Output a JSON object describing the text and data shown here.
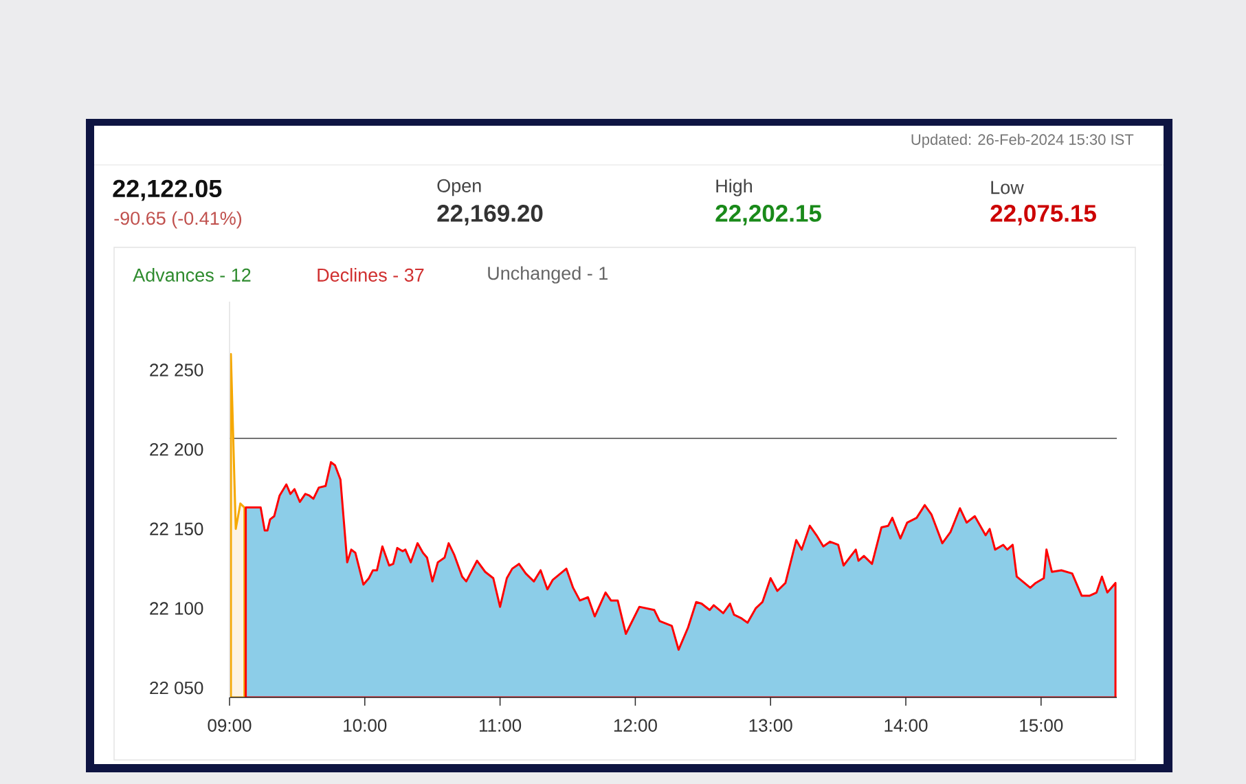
{
  "chart_data": {
    "type": "area",
    "title": "22,122.05",
    "subtitle": "-90.65 (-0.41%)",
    "annotations": [
      "Updated: 26-Feb-2024 15:30 IST",
      "Open",
      "22,169.20",
      "High",
      "22,202.15",
      "Low",
      "22,075.15",
      "Advances - 12",
      "Declines - 37",
      "Unchanged - 1"
    ],
    "xlim": [
      9,
      15.56
    ],
    "ylim": [
      22044,
      22293
    ],
    "xticks": [
      {
        "value": 9,
        "label": "09:00"
      },
      {
        "value": 10,
        "label": "10:00"
      },
      {
        "value": 11,
        "label": "11:00"
      },
      {
        "value": 12,
        "label": "12:00"
      },
      {
        "value": 13,
        "label": "13:00"
      },
      {
        "value": 14,
        "label": "14:00"
      },
      {
        "value": 15,
        "label": "15:00"
      }
    ],
    "yticks": [
      {
        "value": 22050,
        "label": "22 050"
      },
      {
        "value": 22100,
        "label": "22 100"
      },
      {
        "value": 22150,
        "label": "22 150"
      },
      {
        "value": 22200,
        "label": "22 200"
      },
      {
        "value": 22250,
        "label": "22 250"
      }
    ],
    "grid": false,
    "ref_lines": [
      {
        "axis": "y",
        "value": 22207,
        "label": null,
        "color": "#444444"
      }
    ],
    "series": [
      {
        "color": "#fdf3e3",
        "x": [
          9.01,
          9.046,
          9.08,
          9.11
        ],
        "values": [
          22260,
          22150,
          22166,
          22163.5
        ]
      },
      {
        "color": "#8ccde8",
        "x": [
          9.12,
          9.23,
          9.26,
          9.28,
          9.3,
          9.33,
          9.37,
          9.42,
          9.45,
          9.48,
          9.52,
          9.56,
          9.59,
          9.62,
          9.66,
          9.71,
          9.75,
          9.78,
          9.82,
          9.87,
          9.9,
          9.93,
          9.99,
          10.03,
          10.06,
          10.09,
          10.13,
          10.18,
          10.21,
          10.24,
          10.28,
          10.3,
          10.34,
          10.39,
          10.43,
          10.46,
          10.5,
          10.54,
          10.59,
          10.62,
          10.66,
          10.72,
          10.75,
          10.83,
          10.89,
          10.95,
          11.0,
          11.05,
          11.09,
          11.14,
          11.19,
          11.25,
          11.3,
          11.35,
          11.39,
          11.49,
          11.54,
          11.59,
          11.65,
          11.7,
          11.78,
          11.82,
          11.87,
          11.93,
          12.03,
          12.14,
          12.18,
          12.27,
          12.32,
          12.39,
          12.45,
          12.49,
          12.55,
          12.58,
          12.65,
          12.7,
          12.73,
          12.78,
          12.83,
          12.89,
          12.94,
          13.0,
          13.05,
          13.11,
          13.19,
          13.23,
          13.29,
          13.34,
          13.39,
          13.44,
          13.5,
          13.54,
          13.63,
          13.65,
          13.69,
          13.75,
          13.82,
          13.87,
          13.9,
          13.96,
          14.01,
          14.08,
          14.14,
          14.19,
          14.27,
          14.33,
          14.4,
          14.45,
          14.51,
          14.59,
          14.62,
          14.66,
          14.72,
          14.75,
          14.79,
          14.82,
          14.92,
          14.96,
          15.02,
          15.04,
          15.08,
          15.15,
          15.23,
          15.3,
          15.36,
          15.41,
          15.45,
          15.49,
          15.55
        ],
        "values": [
          22163.5,
          22163.5,
          22149,
          22149,
          22156,
          22158,
          22171,
          22178,
          22172,
          22175,
          22167,
          22172,
          22171,
          22169,
          22176,
          22177,
          22192,
          22190,
          22181,
          22129,
          22137,
          22135,
          22115,
          22119,
          22124,
          22124,
          22139,
          22127,
          22128,
          22138,
          22136,
          22137,
          22129,
          22141,
          22135,
          22132,
          22117,
          22129,
          22132,
          22141,
          22134,
          22120,
          22117,
          22130,
          22123,
          22119,
          22101,
          22119,
          22125,
          22128,
          22122,
          22117,
          22124,
          22112,
          22118,
          22125,
          22113,
          22105,
          22107,
          22095,
          22110,
          22105,
          22105,
          22084,
          22101,
          22099,
          22092,
          22089,
          22074,
          22088,
          22104,
          22103,
          22099,
          22102,
          22097,
          22103,
          22096,
          22094,
          22091,
          22100,
          22104,
          22119,
          22111,
          22116,
          22143,
          22137,
          22152,
          22146,
          22139,
          22142,
          22140,
          22127,
          22137,
          22130,
          22133,
          22128,
          22151,
          22152,
          22157,
          22144,
          22154,
          22157,
          22165,
          22159,
          22141,
          22148,
          22163,
          22154,
          22158,
          22146,
          22150,
          22137,
          22140,
          22137,
          22140,
          22120,
          22113,
          22116,
          22119,
          22137,
          22123,
          22124,
          22122,
          22108,
          22108,
          22110,
          22120,
          22110,
          22116
        ]
      }
    ]
  }
}
